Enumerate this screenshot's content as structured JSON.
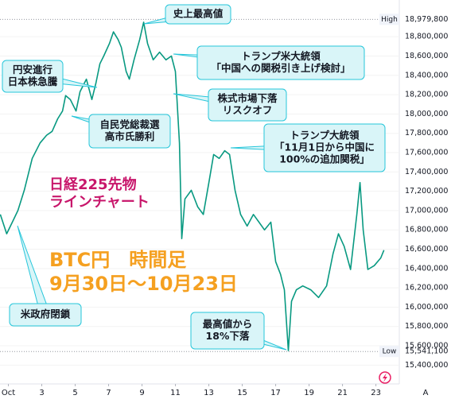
{
  "chart_data": {
    "type": "line",
    "x": [
      0.52,
      0.9,
      1.24,
      1.57,
      1.95,
      2.43,
      2.9,
      3.29,
      3.62,
      3.95,
      4.24,
      4.43,
      4.71,
      5.05,
      5.29,
      5.67,
      6.0,
      6.24,
      6.48,
      6.71,
      7.05,
      7.29,
      7.57,
      7.76,
      8.05,
      8.24,
      8.52,
      8.86,
      9.1,
      9.33,
      9.67,
      10.05,
      10.43,
      10.76,
      11.0,
      11.24,
      11.38,
      11.57,
      11.95,
      12.33,
      12.67,
      13.0,
      13.29,
      13.62,
      13.95,
      14.24,
      14.57,
      14.9,
      15.29,
      15.67,
      16.0,
      16.33,
      16.71,
      17.0,
      17.29,
      17.52,
      17.76,
      17.95,
      18.24,
      18.62,
      19.1,
      19.57,
      20.05,
      20.43,
      20.76,
      21.1,
      21.48,
      21.86,
      22.05,
      22.24,
      22.52,
      22.9,
      23.29,
      23.48
    ],
    "series": [
      {
        "color": "#089981",
        "values": [
          16960000,
          16760000,
          16880000,
          17000000,
          17210000,
          17540000,
          17700000,
          17780000,
          17820000,
          17950000,
          18030000,
          18190000,
          18150000,
          18030000,
          18230000,
          18360000,
          18150000,
          18320000,
          18520000,
          18600000,
          18730000,
          18850000,
          18770000,
          18690000,
          18440000,
          18360000,
          18560000,
          18770000,
          18950000,
          18730000,
          18560000,
          18640000,
          18560000,
          18600000,
          18440000,
          17700000,
          16710000,
          17120000,
          17210000,
          17040000,
          16960000,
          17290000,
          17580000,
          17540000,
          17620000,
          17580000,
          17210000,
          16960000,
          16840000,
          16960000,
          16880000,
          16800000,
          16880000,
          16470000,
          16340000,
          16180000,
          15550000,
          16060000,
          16180000,
          16220000,
          16180000,
          16100000,
          16220000,
          16550000,
          16760000,
          16630000,
          16390000,
          16960000,
          17290000,
          16800000,
          16390000,
          16430000,
          16510000,
          16590000
        ]
      }
    ],
    "xlim": [
      0.5,
      24.4
    ],
    "xticks": [
      {
        "value": 1,
        "label": "Oct"
      },
      3,
      5,
      7,
      9,
      11,
      13,
      15,
      17,
      19,
      21,
      23
    ],
    "ylim": [
      15230000,
      19180000
    ],
    "yticks": [
      {
        "value": 15400000,
        "label": "15,400,000"
      },
      {
        "value": 15600000,
        "label": "15,600,000"
      },
      {
        "value": 15800000,
        "label": "15,800,000"
      },
      {
        "value": 16000000,
        "label": "16,000,000"
      },
      {
        "value": 16200000,
        "label": "16,200,000"
      },
      {
        "value": 16400000,
        "label": "16,400,000"
      },
      {
        "value": 16600000,
        "label": "16,600,000"
      },
      {
        "value": 16800000,
        "label": "16,800,000"
      },
      {
        "value": 17000000,
        "label": "17,000,000"
      },
      {
        "value": 17200000,
        "label": "17,200,000"
      },
      {
        "value": 17400000,
        "label": "17,400,000"
      },
      {
        "value": 17600000,
        "label": "17,600,000"
      },
      {
        "value": 17800000,
        "label": "17,800,000"
      },
      {
        "value": 18000000,
        "label": "18,000,000"
      },
      {
        "value": 18200000,
        "label": "18,200,000"
      },
      {
        "value": 18400000,
        "label": "18,400,000"
      },
      {
        "value": 18600000,
        "label": "18,600,000"
      },
      {
        "value": 18800000,
        "label": "18,800,000"
      }
    ],
    "high_marker": {
      "label": "High",
      "value": 18979800,
      "value_label": "18,979,800"
    },
    "low_marker": {
      "label": "Low",
      "value": 15541100,
      "value_label": "15,541,100"
    },
    "overlay_pink": [
      "日経225先物",
      "ラインチャート"
    ],
    "overlay_orange": [
      "BTC円　時間足",
      "9月30日～10月23日"
    ],
    "annotations": [
      {
        "lines": [
          "史上最高値"
        ]
      },
      {
        "lines": [
          "トランプ米大統領",
          "「中国への関税引き上げ検討」"
        ]
      },
      {
        "lines": [
          "円安進行",
          "日本株急騰"
        ]
      },
      {
        "lines": [
          "株式市場下落",
          "リスクオフ"
        ]
      },
      {
        "lines": [
          "自民党総裁選",
          "高市氏勝利"
        ]
      },
      {
        "lines": [
          "トランプ大統領",
          "「11月1日から中国に",
          "100%の追加関税」"
        ]
      },
      {
        "lines": [
          "米政府閉鎖"
        ]
      },
      {
        "lines": [
          "最高値から",
          "18%下落"
        ]
      }
    ],
    "auto_button": "A"
  }
}
